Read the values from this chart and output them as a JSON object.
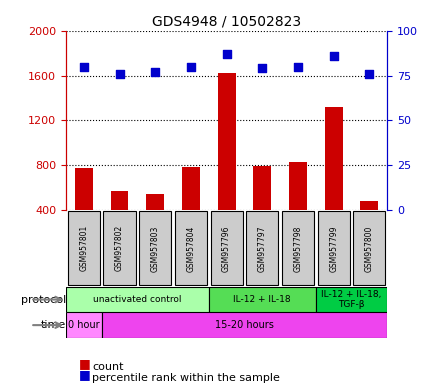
{
  "title": "GDS4948 / 10502823",
  "samples": [
    "GSM957801",
    "GSM957802",
    "GSM957803",
    "GSM957804",
    "GSM957796",
    "GSM957797",
    "GSM957798",
    "GSM957799",
    "GSM957800"
  ],
  "counts": [
    770,
    570,
    540,
    780,
    1620,
    790,
    830,
    1320,
    480
  ],
  "percentile_ranks": [
    80,
    76,
    77,
    80,
    87,
    79,
    80,
    86,
    76
  ],
  "ylim_left": [
    400,
    2000
  ],
  "ylim_right": [
    0,
    100
  ],
  "yticks_left": [
    400,
    800,
    1200,
    1600,
    2000
  ],
  "yticks_right": [
    0,
    25,
    50,
    75,
    100
  ],
  "bar_color": "#cc0000",
  "dot_color": "#0000cc",
  "protocol_groups": [
    {
      "label": "unactivated control",
      "start": 0,
      "end": 4,
      "color": "#aaffaa"
    },
    {
      "label": "IL-12 + IL-18",
      "start": 4,
      "end": 7,
      "color": "#55dd55"
    },
    {
      "label": "IL-12 + IL-18,\nTGF-β",
      "start": 7,
      "end": 9,
      "color": "#00cc44"
    }
  ],
  "time_groups": [
    {
      "label": "0 hour",
      "start": 0,
      "end": 1,
      "color": "#ff88ff"
    },
    {
      "label": "15-20 hours",
      "start": 1,
      "end": 9,
      "color": "#ee44ee"
    }
  ],
  "legend_count_label": "count",
  "legend_pct_label": "percentile rank within the sample",
  "xlabel_color": "#cc0000",
  "ylabel_right_color": "#0000cc",
  "grid_color": "#000000",
  "background_color": "#ffffff",
  "sample_box_color": "#cccccc",
  "protocol_row_label": "protocol",
  "time_row_label": "time"
}
